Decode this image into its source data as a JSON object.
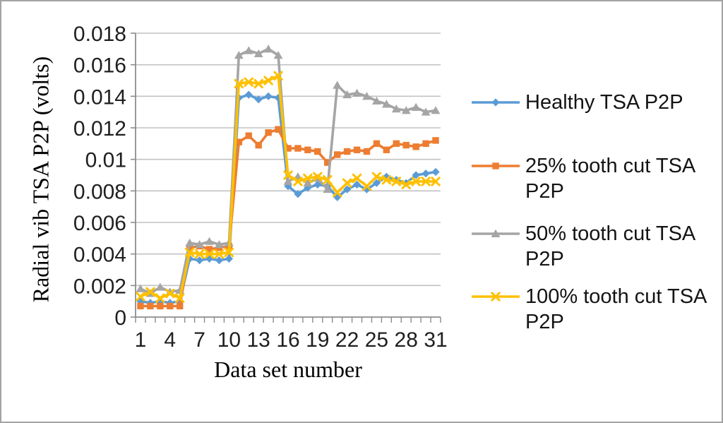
{
  "figure": {
    "background": "#ffffff",
    "border_color": "#a3a3a3",
    "gridline_color": "#c2c2c2",
    "axis_color": "#8c8c8c",
    "text_color": "#1f1f1f"
  },
  "chart_data": {
    "type": "line",
    "title": "",
    "xlabel": "Data set number",
    "ylabel": "Radial vib TSA P2P (volts)",
    "num_points": 31,
    "x_range": [
      1,
      31
    ],
    "x_tick_labels": [
      "1",
      "4",
      "7",
      "10",
      "13",
      "16",
      "19",
      "22",
      "25",
      "28",
      "31"
    ],
    "x_tick_values": [
      1,
      4,
      7,
      10,
      13,
      16,
      19,
      22,
      25,
      28,
      31
    ],
    "y_tick_labels": [
      "0",
      "0.002",
      "0.004",
      "0.006",
      "0.008",
      "0.01",
      "0.012",
      "0.014",
      "0.016",
      "0.018"
    ],
    "ylim": [
      0,
      0.018
    ],
    "y_tick_step": 0.002,
    "grid": true,
    "legend_position": "right",
    "series": [
      {
        "name": "Healthy TSA P2P",
        "color": "#5B9BD5",
        "marker": "diamond",
        "values": [
          0.001,
          0.0009,
          0.001,
          0.0009,
          0.001,
          0.0037,
          0.0036,
          0.0037,
          0.0036,
          0.0037,
          0.0139,
          0.0141,
          0.0138,
          0.014,
          0.0139,
          0.0083,
          0.0078,
          0.0082,
          0.0084,
          0.0083,
          0.0076,
          0.0081,
          0.0084,
          0.0081,
          0.0085,
          0.0089,
          0.0087,
          0.0085,
          0.009,
          0.0091,
          0.0092
        ]
      },
      {
        "name": "25% tooth cut TSA P2P",
        "color": "#ED7D31",
        "marker": "square",
        "values": [
          0.0007,
          0.0007,
          0.0007,
          0.0007,
          0.0007,
          0.0044,
          0.0045,
          0.0043,
          0.0044,
          0.0045,
          0.0111,
          0.0115,
          0.0109,
          0.0117,
          0.0119,
          0.0107,
          0.0107,
          0.0106,
          0.0105,
          0.0098,
          0.0103,
          0.0105,
          0.0106,
          0.0105,
          0.011,
          0.0106,
          0.011,
          0.0109,
          0.0108,
          0.011,
          0.0112
        ]
      },
      {
        "name": "50% tooth cut TSA P2P",
        "color": "#A5A5A5",
        "marker": "triangle",
        "values": [
          0.0018,
          0.0015,
          0.0019,
          0.0016,
          0.0017,
          0.0047,
          0.0046,
          0.0048,
          0.0046,
          0.0047,
          0.0166,
          0.0169,
          0.0167,
          0.017,
          0.0166,
          0.0086,
          0.0089,
          0.0085,
          0.0088,
          0.0081,
          0.0147,
          0.0141,
          0.0142,
          0.014,
          0.0137,
          0.0135,
          0.0132,
          0.0131,
          0.0133,
          0.013,
          0.0131
        ]
      },
      {
        "name": "100% tooth cut TSA P2P",
        "color": "#FFC000",
        "marker": "x",
        "values": [
          0.0013,
          0.0016,
          0.0012,
          0.0015,
          0.0012,
          0.0041,
          0.004,
          0.004,
          0.004,
          0.0041,
          0.0148,
          0.0149,
          0.0148,
          0.015,
          0.0153,
          0.009,
          0.0086,
          0.0088,
          0.0089,
          0.0087,
          0.0079,
          0.0085,
          0.0088,
          0.0083,
          0.0089,
          0.0087,
          0.0086,
          0.0084,
          0.0086,
          0.0086,
          0.0086
        ]
      }
    ]
  }
}
